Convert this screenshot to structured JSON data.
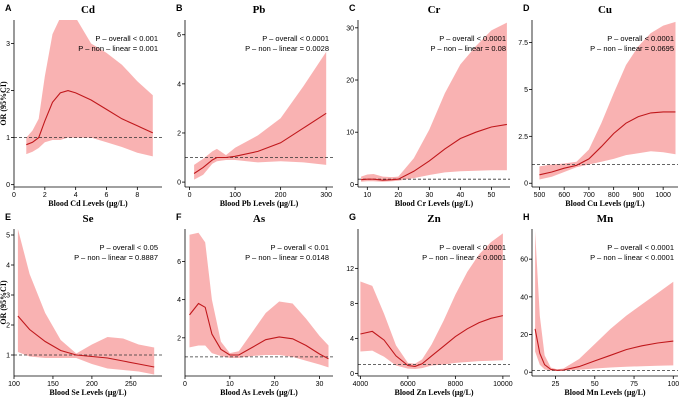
{
  "figure": {
    "y_axis_label": "OR (95%CI)",
    "colors": {
      "band": "#f8a5a5",
      "line": "#c0181c",
      "ref": "#333333",
      "axis": "#000000"
    }
  },
  "chart_data": [
    {
      "id": "A",
      "type": "line",
      "title": "Cd",
      "xlabel": "Blood Cd Levels (μg/L)",
      "ylabel": "OR (95%CI)",
      "xlim": [
        0,
        9.6
      ],
      "ylim": [
        -0.05,
        3.5
      ],
      "xticks": [
        0,
        2,
        4,
        6,
        8
      ],
      "yticks": [
        0,
        1,
        2,
        3
      ],
      "ref": 1,
      "annotations": [
        "P – overall < 0.001",
        "P – non – linear = 0.001"
      ],
      "x": [
        0.8,
        1.2,
        1.6,
        2.0,
        2.5,
        3.0,
        3.5,
        4.0,
        5.0,
        6.0,
        7.0,
        8.0,
        9.0
      ],
      "y": [
        0.85,
        0.9,
        1.0,
        1.35,
        1.75,
        1.95,
        2.0,
        1.95,
        1.8,
        1.6,
        1.4,
        1.25,
        1.1
      ],
      "lower": [
        0.65,
        0.7,
        0.78,
        0.9,
        0.95,
        0.95,
        1.0,
        1.0,
        1.0,
        0.9,
        0.8,
        0.68,
        0.6
      ],
      "upper": [
        1.0,
        1.15,
        1.4,
        2.3,
        3.2,
        3.55,
        3.6,
        3.55,
        3.0,
        2.8,
        2.55,
        2.2,
        1.9
      ]
    },
    {
      "id": "B",
      "type": "line",
      "title": "Pb",
      "xlabel": "Blood Pb Levels (μg/L)",
      "ylabel": "",
      "xlim": [
        -10,
        315
      ],
      "ylim": [
        -0.2,
        6.6
      ],
      "xticks": [
        0,
        100,
        200,
        300
      ],
      "yticks": [
        0,
        2,
        4,
        6
      ],
      "ref": 1,
      "annotations": [
        "P – overall < 0.0001",
        "P – non – linear = 0.0028"
      ],
      "x": [
        10,
        30,
        50,
        60,
        80,
        100,
        150,
        200,
        250,
        300
      ],
      "y": [
        0.35,
        0.6,
        0.9,
        1.0,
        1.0,
        1.05,
        1.25,
        1.6,
        2.2,
        2.8
      ],
      "lower": [
        0.1,
        0.3,
        0.75,
        0.85,
        0.9,
        0.9,
        0.8,
        0.85,
        0.8,
        0.7
      ],
      "upper": [
        0.7,
        0.95,
        1.25,
        1.35,
        1.1,
        1.4,
        1.9,
        2.6,
        3.9,
        5.3
      ]
    },
    {
      "id": "C",
      "type": "line",
      "title": "Cr",
      "xlabel": "Blood Cr Levels (μg/L)",
      "ylabel": "",
      "xlim": [
        7,
        56
      ],
      "ylim": [
        -0.5,
        31.5
      ],
      "xticks": [
        10,
        20,
        30,
        40,
        50
      ],
      "yticks": [
        0,
        10,
        20,
        30
      ],
      "ref": 1,
      "annotations": [
        "P – overall < 0.0001",
        "P – non – linear = 0.08"
      ],
      "x": [
        8,
        10,
        12,
        15,
        18,
        20,
        25,
        30,
        35,
        40,
        45,
        50,
        55
      ],
      "y": [
        0.9,
        1.0,
        1.0,
        0.8,
        0.9,
        1.0,
        2.5,
        4.5,
        6.8,
        8.8,
        10.0,
        11.0,
        11.5
      ],
      "lower": [
        0.5,
        0.6,
        0.6,
        0.5,
        0.6,
        0.7,
        1.2,
        1.8,
        2.3,
        2.5,
        2.6,
        2.7,
        2.7
      ],
      "upper": [
        1.5,
        1.9,
        2.0,
        1.5,
        1.4,
        1.5,
        5.0,
        10.5,
        17.5,
        23.0,
        26.5,
        29.5,
        31.0
      ]
    },
    {
      "id": "D",
      "type": "line",
      "title": "Cu",
      "xlabel": "Blood Cu Levels (μg/L)",
      "ylabel": "",
      "xlim": [
        470,
        1060
      ],
      "ylim": [
        -0.2,
        8.7
      ],
      "xticks": [
        500,
        600,
        700,
        800,
        900,
        1000
      ],
      "yticks": [
        0,
        2.5,
        5,
        7.5
      ],
      "ref": 1,
      "annotations": [
        "P – overall < 0.0001",
        "P – non – linear = 0.0695"
      ],
      "x": [
        500,
        550,
        600,
        650,
        700,
        750,
        800,
        850,
        900,
        950,
        1000,
        1050
      ],
      "y": [
        0.45,
        0.6,
        0.8,
        0.95,
        1.3,
        1.95,
        2.65,
        3.2,
        3.55,
        3.75,
        3.8,
        3.8
      ],
      "lower": [
        0.2,
        0.35,
        0.6,
        0.85,
        1.0,
        1.15,
        1.3,
        1.5,
        1.6,
        1.7,
        1.65,
        1.55
      ],
      "upper": [
        0.9,
        1.0,
        1.05,
        1.15,
        1.8,
        3.2,
        4.8,
        6.3,
        7.3,
        8.0,
        8.4,
        8.6
      ]
    },
    {
      "id": "E",
      "type": "line",
      "title": "Se",
      "xlabel": "Blood Se Levels (μg/L)",
      "ylabel": "OR (95%CI)",
      "xlim": [
        100,
        290
      ],
      "ylim": [
        0.3,
        5.2
      ],
      "xticks": [
        100,
        150,
        200,
        250
      ],
      "yticks": [
        1,
        2,
        3,
        4,
        5
      ],
      "ref": 1,
      "annotations": [
        "P – overall < 0.05",
        "P – non – linear = 0.8887"
      ],
      "x": [
        105,
        120,
        140,
        160,
        180,
        200,
        220,
        240,
        260,
        280
      ],
      "y": [
        2.3,
        1.85,
        1.45,
        1.15,
        1.0,
        0.95,
        0.9,
        0.8,
        0.7,
        0.6
      ],
      "lower": [
        1.1,
        0.95,
        0.9,
        0.9,
        0.9,
        0.7,
        0.55,
        0.5,
        0.45,
        0.35
      ],
      "upper": [
        5.2,
        3.7,
        2.4,
        1.5,
        1.05,
        1.35,
        1.6,
        1.55,
        1.35,
        1.25
      ]
    },
    {
      "id": "F",
      "type": "line",
      "title": "As",
      "xlabel": "Blood As Levels (μg/L)",
      "ylabel": "",
      "xlim": [
        0,
        33
      ],
      "ylim": [
        0,
        7.7
      ],
      "xticks": [
        0,
        10,
        20,
        30
      ],
      "yticks": [
        2,
        4,
        6
      ],
      "ref": 1,
      "annotations": [
        "P – overall < 0.01",
        "P – non – linear = 0.0148"
      ],
      "x": [
        1,
        3,
        4.5,
        6,
        8,
        10,
        12,
        15,
        18,
        21,
        24,
        27,
        30,
        32
      ],
      "y": [
        3.2,
        3.8,
        3.6,
        2.2,
        1.4,
        1.1,
        1.1,
        1.5,
        1.9,
        2.05,
        1.95,
        1.6,
        1.15,
        0.9
      ],
      "lower": [
        1.5,
        1.6,
        1.6,
        1.2,
        1.05,
        0.95,
        0.95,
        1.05,
        1.1,
        1.1,
        1.0,
        0.8,
        0.6,
        0.45
      ],
      "upper": [
        7.4,
        7.5,
        7.0,
        4.0,
        1.8,
        1.2,
        1.3,
        2.3,
        3.3,
        3.9,
        3.8,
        3.0,
        2.1,
        1.6
      ]
    },
    {
      "id": "G",
      "type": "line",
      "title": "Zn",
      "xlabel": "Blood Zn Levels (μg/L)",
      "ylabel": "",
      "xlim": [
        3900,
        10300
      ],
      "ylim": [
        -0.3,
        16.5
      ],
      "xticks": [
        4000,
        6000,
        8000,
        10000
      ],
      "yticks": [
        0,
        4,
        8,
        12
      ],
      "ref": 1,
      "annotations": [
        "P – overall < 0.0001",
        "P – non – linear < 0.0001"
      ],
      "x": [
        4000,
        4500,
        5000,
        5500,
        6000,
        6300,
        6600,
        7000,
        7500,
        8000,
        8500,
        9000,
        9500,
        10000
      ],
      "y": [
        4.5,
        4.8,
        3.8,
        2.0,
        0.9,
        0.8,
        1.1,
        2.0,
        3.1,
        4.2,
        5.1,
        5.8,
        6.3,
        6.6
      ],
      "lower": [
        2.5,
        2.6,
        1.9,
        0.9,
        0.55,
        0.5,
        0.6,
        0.9,
        1.0,
        1.2,
        1.3,
        1.4,
        1.45,
        1.5
      ],
      "upper": [
        10.5,
        10.0,
        6.8,
        3.2,
        1.2,
        1.1,
        1.6,
        3.3,
        6.0,
        9.0,
        11.6,
        13.6,
        15.0,
        16.0
      ]
    },
    {
      "id": "H",
      "type": "line",
      "title": "Mn",
      "xlabel": "Blood Mn Levels (μg/L)",
      "ylabel": "",
      "xlim": [
        10,
        103
      ],
      "ylim": [
        -2,
        76
      ],
      "xticks": [
        25,
        50,
        75,
        100
      ],
      "yticks": [
        0,
        20,
        40,
        60
      ],
      "ref": 1,
      "annotations": [
        "P – overall < 0.0001",
        "P – non – linear < 0.0001"
      ],
      "x": [
        12,
        15,
        18,
        22,
        26,
        30,
        40,
        50,
        60,
        70,
        80,
        90,
        100
      ],
      "y": [
        23,
        10,
        4,
        1.5,
        1.0,
        1.2,
        3,
        6,
        9,
        12,
        14,
        15.5,
        16.5
      ],
      "lower": [
        11,
        4,
        1.5,
        0.8,
        0.7,
        0.8,
        1.3,
        2,
        2.5,
        2.9,
        3.2,
        3.4,
        3.6
      ],
      "upper": [
        75,
        30,
        9,
        2.5,
        1.5,
        2.0,
        7,
        15,
        23,
        30,
        36,
        42,
        48
      ]
    }
  ]
}
